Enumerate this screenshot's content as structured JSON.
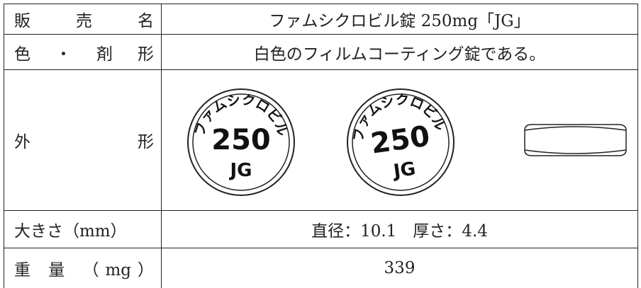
{
  "table": {
    "rows": [
      {
        "label": "販 売 名",
        "value": "ファムシクロビル錠 250mg「JG」"
      },
      {
        "label": "色 ・ 剤 形",
        "value": "白色のフィルムコーティング錠である。"
      },
      {
        "label": "外 形",
        "markings": {
          "arc": "ファムシクロビル",
          "strength": "250",
          "code": "JG"
        }
      },
      {
        "label": "大きさ（mm）",
        "value": "直径：10.1　厚さ：4.4"
      },
      {
        "label": "重 量 （mg）",
        "value": "339"
      }
    ]
  }
}
